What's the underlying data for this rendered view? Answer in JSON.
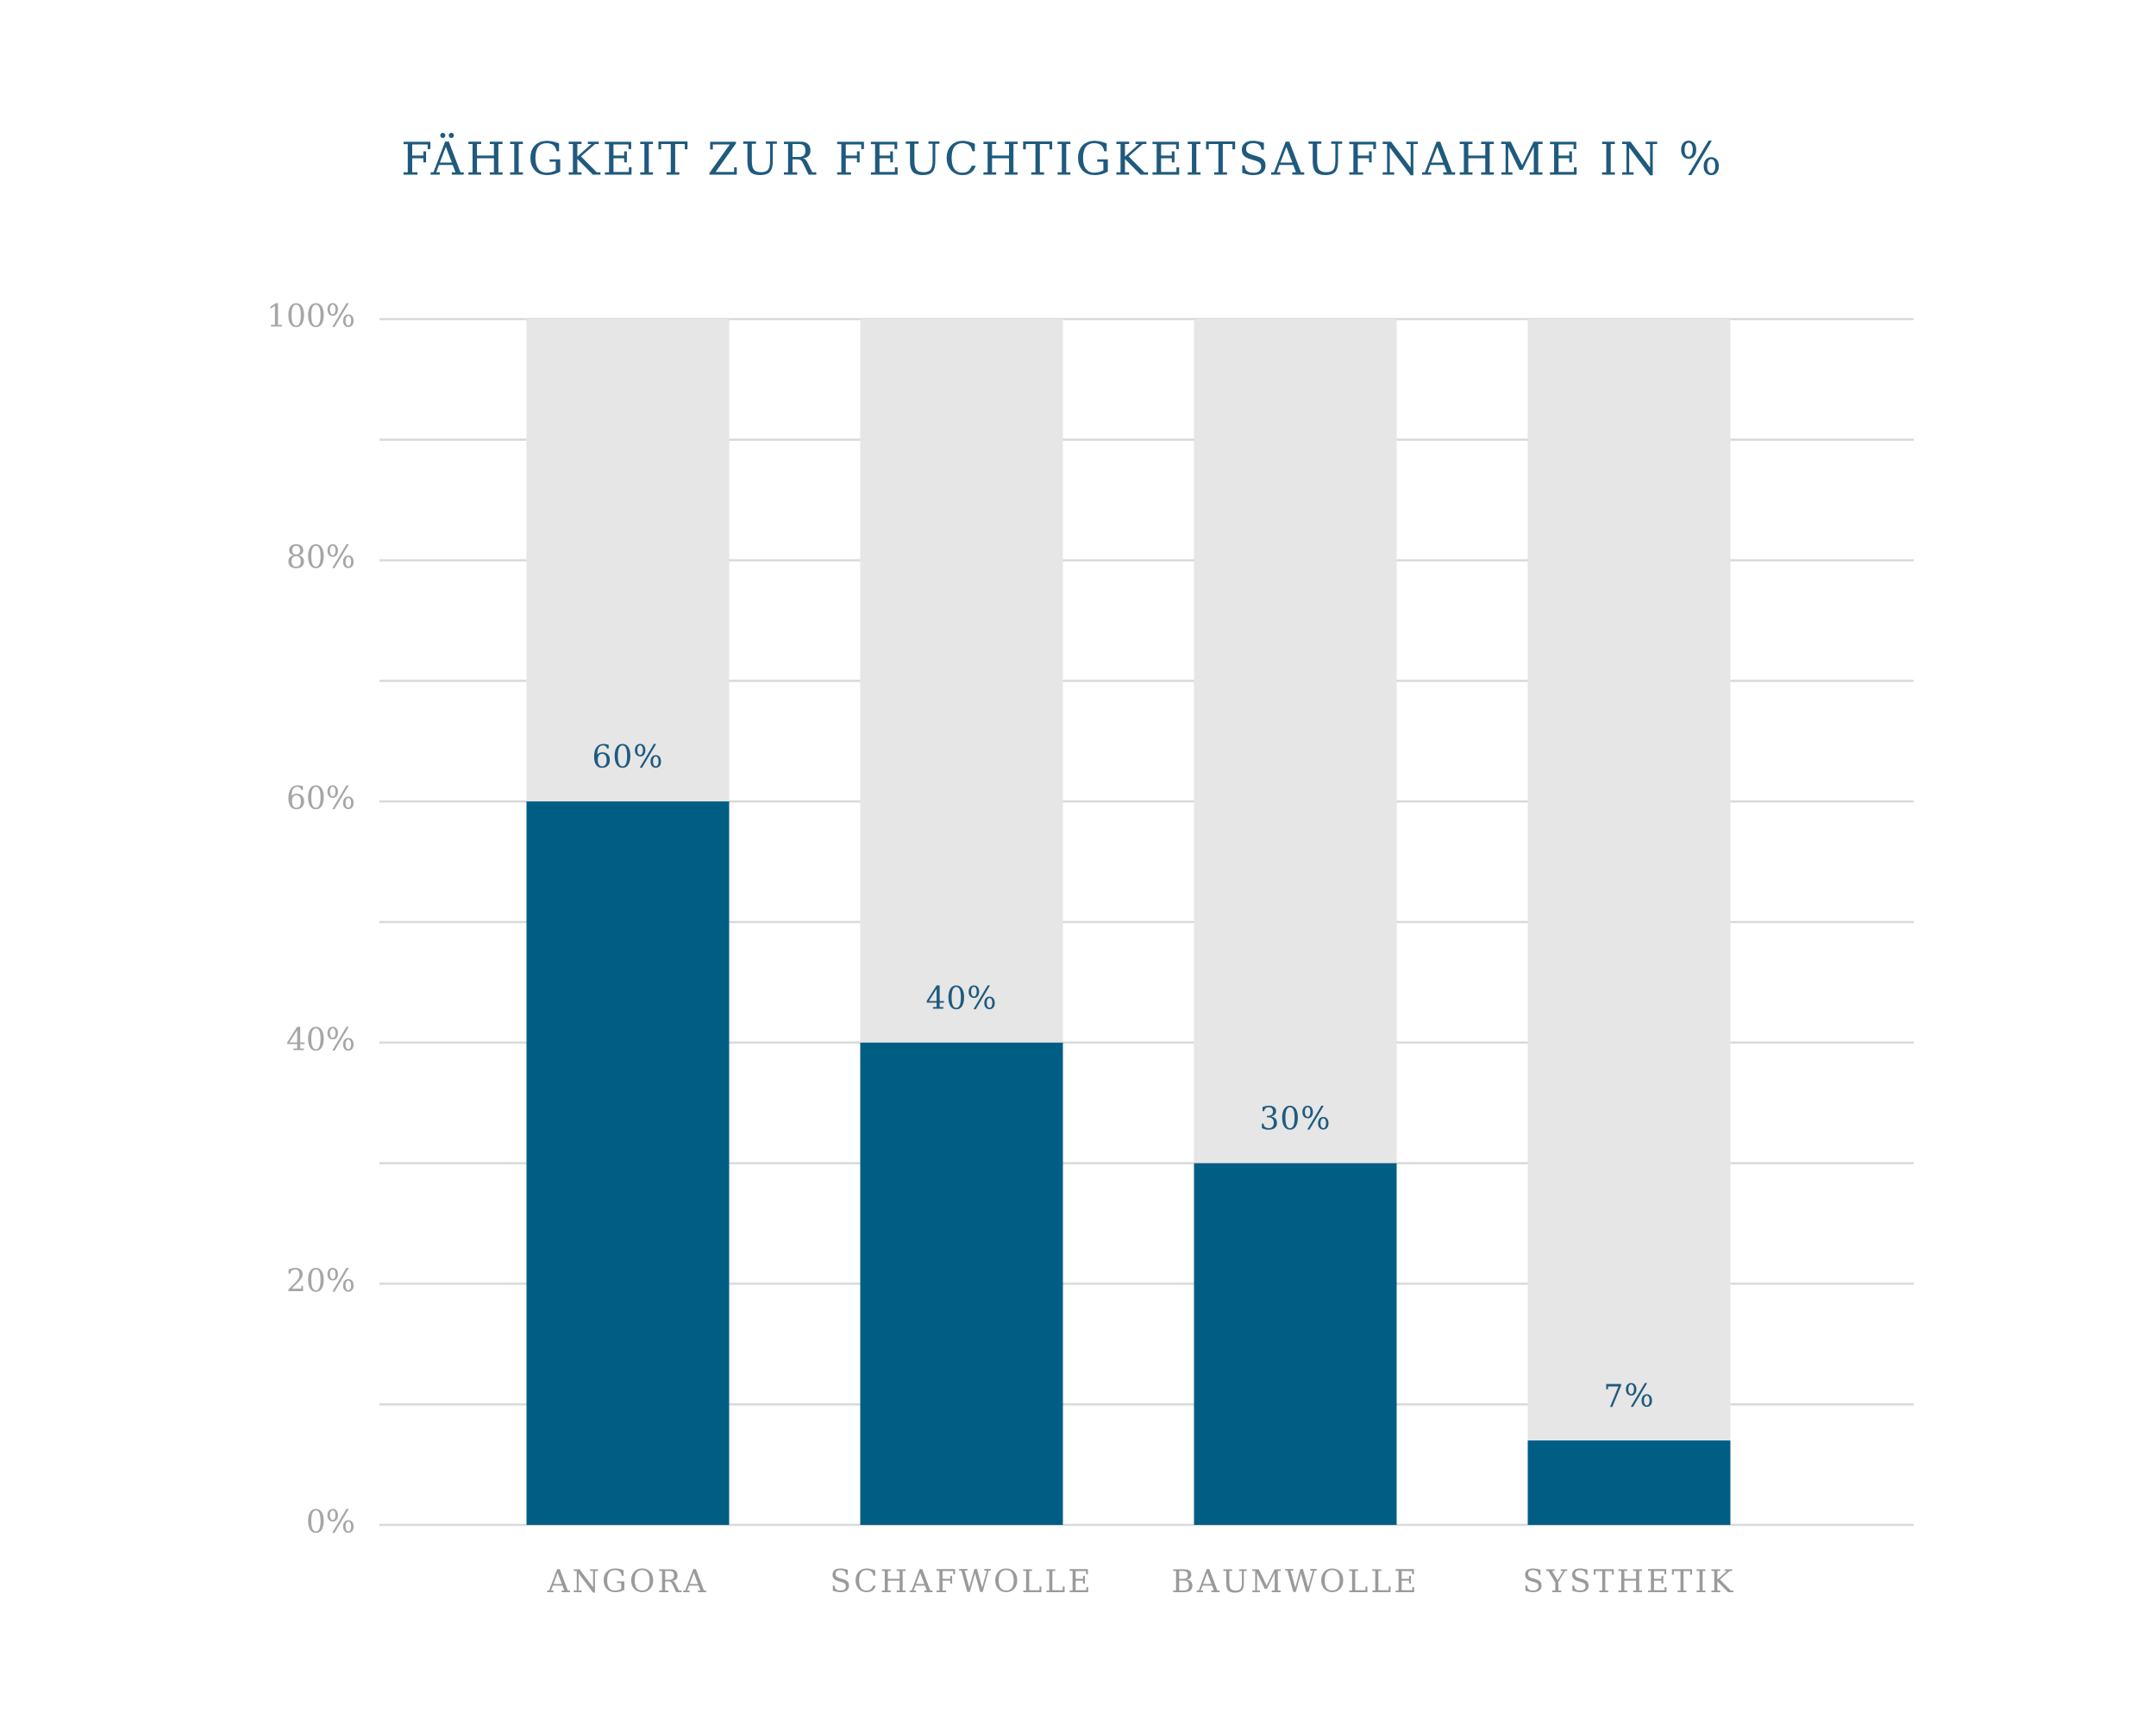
{
  "chart_data": {
    "type": "bar",
    "title": "FÄHIGKEIT ZUR FEUCHTIGKEITSAUFNAHME IN %",
    "categories": [
      "ANGORA",
      "SCHAFWOLLE",
      "BAUMWOLLE",
      "SYSTHETIK"
    ],
    "values": [
      60,
      40,
      30,
      7
    ],
    "value_labels": [
      "60%",
      "40%",
      "30%",
      "7%"
    ],
    "color": "#005e85",
    "track_color": "#e6e6e6",
    "ylim": [
      0,
      100
    ],
    "yticks": [
      {
        "value": 0,
        "label": "0%"
      },
      {
        "value": 20,
        "label": "20%"
      },
      {
        "value": 40,
        "label": "40%"
      },
      {
        "value": 60,
        "label": "60%"
      },
      {
        "value": 80,
        "label": "80%"
      },
      {
        "value": 100,
        "label": "100%"
      }
    ],
    "minor_yticks": [
      10,
      30,
      50,
      70,
      90
    ],
    "grid": true
  }
}
